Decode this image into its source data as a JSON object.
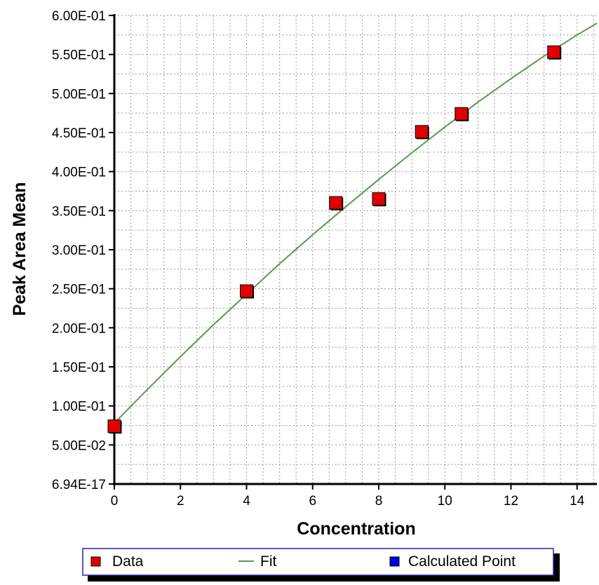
{
  "chart_data": {
    "type": "scatter",
    "title": "",
    "xlabel": "Concentration",
    "ylabel": "Peak Area Mean",
    "xlim": [
      0,
      14.6
    ],
    "ylim": [
      0,
      0.6
    ],
    "x_ticks": [
      0,
      2,
      4,
      6,
      8,
      10,
      12,
      14
    ],
    "x_tick_labels": [
      "0",
      "2",
      "4",
      "6",
      "8",
      "10",
      "12",
      "14"
    ],
    "y_ticks": [
      0,
      0.05,
      0.1,
      0.15,
      0.2,
      0.25,
      0.3,
      0.35,
      0.4,
      0.45,
      0.5,
      0.55,
      0.6
    ],
    "y_tick_labels": [
      "6.94E-17",
      "5.00E-02",
      "1.00E-01",
      "1.50E-01",
      "2.00E-01",
      "2.50E-01",
      "3.00E-01",
      "3.50E-01",
      "4.00E-01",
      "4.50E-01",
      "5.00E-01",
      "5.50E-01",
      "6.00E-01"
    ],
    "grid": true,
    "series": [
      {
        "name": "Data",
        "kind": "scatter",
        "marker": "square",
        "color": "#e00000",
        "x": [
          0,
          4,
          6.7,
          8,
          9.3,
          10.5,
          13.3
        ],
        "y": [
          0.074,
          0.247,
          0.36,
          0.365,
          0.451,
          0.474,
          0.553
        ]
      },
      {
        "name": "Fit",
        "kind": "line",
        "color": "#5a9a4a",
        "x": [
          0,
          1,
          2,
          3,
          4,
          5,
          6,
          7,
          8,
          9,
          10,
          11,
          12,
          13,
          14,
          14.6
        ],
        "y": [
          0.078,
          0.121,
          0.163,
          0.204,
          0.243,
          0.282,
          0.319,
          0.355,
          0.39,
          0.424,
          0.457,
          0.489,
          0.519,
          0.548,
          0.575,
          0.59
        ]
      }
    ],
    "legend": {
      "position": "bottom",
      "items": [
        {
          "label": "Data",
          "symbol": "square",
          "color": "#e00000"
        },
        {
          "label": "Fit",
          "symbol": "line",
          "color": "#5a9a4a"
        },
        {
          "label": "Calculated Point",
          "symbol": "square",
          "color": "#0000e0"
        }
      ]
    }
  }
}
